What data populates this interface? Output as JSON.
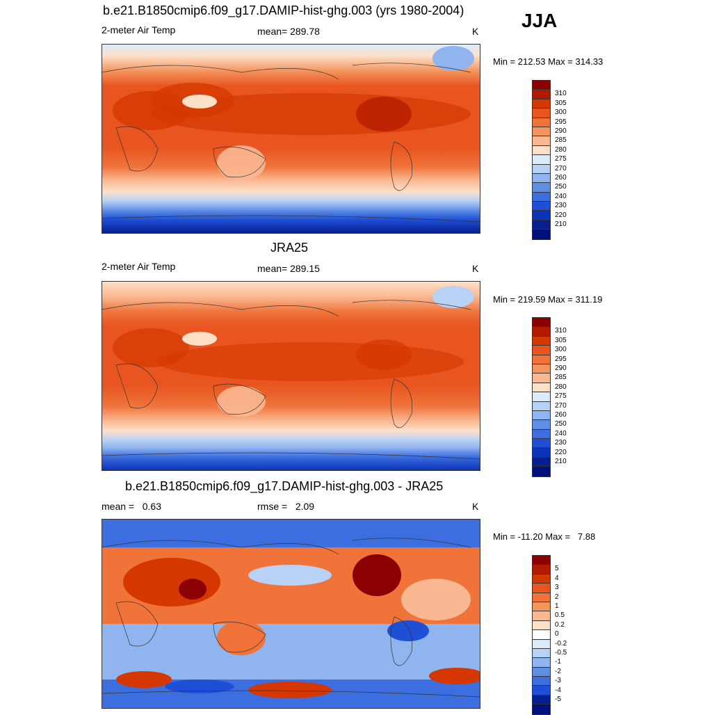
{
  "season": "JJA",
  "panels": [
    {
      "title": "b.e21.B1850cmip6.f09_g17.DAMIP-hist-ghg.003 (yrs 1980-2004)",
      "left_label": "2-meter Air Temp",
      "center_label": "mean= 289.78",
      "units": "K",
      "minmax": "Min = 212.53 Max = 314.33",
      "colorbar": {
        "colors": [
          "#8b0000",
          "#b01a00",
          "#d43800",
          "#e85520",
          "#f0743a",
          "#f5955e",
          "#f9b892",
          "#fde0c8",
          "#dcebfa",
          "#b8d2f5",
          "#8fb4ee",
          "#5f8ee5",
          "#3c6ee0",
          "#1e4fd6",
          "#0b33b8",
          "#061f90",
          "#00107a"
        ],
        "labels": [
          "310",
          "305",
          "300",
          "295",
          "290",
          "285",
          "280",
          "275",
          "270",
          "260",
          "250",
          "240",
          "230",
          "220",
          "210"
        ]
      }
    },
    {
      "title": "JRA25",
      "left_label": "2-meter Air Temp",
      "center_label": "mean= 289.15",
      "units": "K",
      "minmax": "Min = 219.59 Max = 311.19",
      "colorbar": {
        "colors": [
          "#8b0000",
          "#b01a00",
          "#d43800",
          "#e85520",
          "#f0743a",
          "#f5955e",
          "#f9b892",
          "#fde0c8",
          "#dcebfa",
          "#b8d2f5",
          "#8fb4ee",
          "#5f8ee5",
          "#3c6ee0",
          "#1e4fd6",
          "#0b33b8",
          "#061f90",
          "#00107a"
        ],
        "labels": [
          "310",
          "305",
          "300",
          "295",
          "290",
          "285",
          "280",
          "275",
          "270",
          "260",
          "250",
          "240",
          "230",
          "220",
          "210"
        ]
      }
    },
    {
      "title": "b.e21.B1850cmip6.f09_g17.DAMIP-hist-ghg.003 - JRA25",
      "left_label": "mean =   0.63",
      "center_label": "rmse =   2.09",
      "units": "K",
      "minmax": "Min = -11.20 Max =   7.88",
      "colorbar": {
        "colors": [
          "#8b0000",
          "#b01a00",
          "#d43800",
          "#e85520",
          "#f0743a",
          "#f5955e",
          "#f9b892",
          "#fde0c8",
          "#ffffff",
          "#dcebfa",
          "#b8d2f5",
          "#8fb4ee",
          "#5f8ee5",
          "#3c6ee0",
          "#1e4fd6",
          "#061f90",
          "#00107a"
        ],
        "labels": [
          "5",
          "4",
          "3",
          "2",
          "1",
          "0.5",
          "0.2",
          "0",
          "-0.2",
          "-0.5",
          "-1",
          "-2",
          "-3",
          "-4",
          "-5"
        ]
      }
    }
  ]
}
